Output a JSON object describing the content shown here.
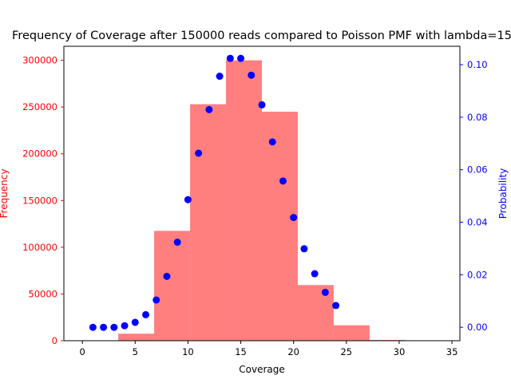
{
  "chart_data": {
    "type": "bar",
    "title": "Frequency of Coverage after 150000 reads compared to Poisson PMF with lambda=15",
    "xlabel": "Coverage",
    "ylabel_left": "Frequency",
    "ylabel_right": "Probability",
    "xlim": [
      -1.75,
      35.75
    ],
    "ylim_left": [
      0,
      315000
    ],
    "ylim_right": [
      -0.0051,
      0.107
    ],
    "x_ticks": [
      0,
      5,
      10,
      15,
      20,
      25,
      30,
      35
    ],
    "y_left_ticks": [
      0,
      50000,
      100000,
      150000,
      200000,
      250000,
      300000
    ],
    "y_right_ticks": [
      0.0,
      0.02,
      0.04,
      0.06,
      0.08,
      0.1
    ],
    "y_right_tick_labels": [
      "0.00",
      "0.02",
      "0.04",
      "0.06",
      "0.08",
      "0.10"
    ],
    "colors": {
      "histogram": "#ff7f7f",
      "pmf": "#0000ff",
      "left_axis": "#ff0000",
      "right_axis": "#0000ff"
    },
    "histogram": {
      "name": "Frequency",
      "bin_edges": [
        0.0,
        3.4,
        6.8,
        10.2,
        13.6,
        17.0,
        20.4,
        23.8,
        27.2,
        30.6,
        34.0
      ],
      "values": [
        0,
        7500,
        117500,
        253000,
        300000,
        245000,
        59500,
        16500,
        800,
        0
      ]
    },
    "pmf": {
      "name": "Probability",
      "x": [
        1,
        2,
        3,
        4,
        5,
        6,
        7,
        8,
        9,
        10,
        11,
        12,
        13,
        14,
        15,
        16,
        17,
        18,
        19,
        20,
        21,
        22,
        23,
        24
      ],
      "y": [
        0.0,
        0.0,
        0.0,
        0.0006,
        0.0019,
        0.0048,
        0.0104,
        0.0194,
        0.0324,
        0.0486,
        0.0663,
        0.0829,
        0.0956,
        0.1024,
        0.1024,
        0.096,
        0.0847,
        0.0706,
        0.0557,
        0.0418,
        0.0299,
        0.0204,
        0.0133,
        0.0083
      ]
    }
  }
}
